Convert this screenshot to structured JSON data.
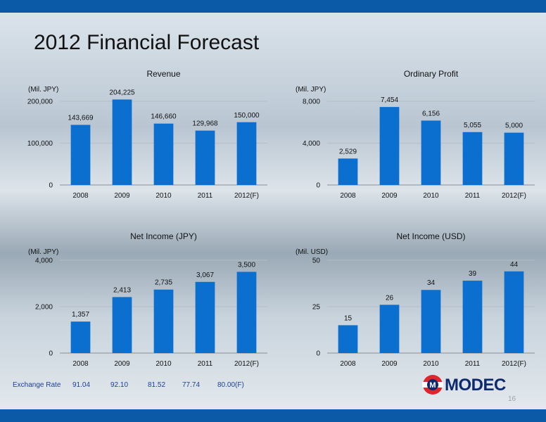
{
  "slide": {
    "title": "2012 Financial Forecast",
    "page_number": "16",
    "colors": {
      "bar": "#0b6fd0",
      "band": "#0b5aa8",
      "text_blue": "#1c3f9a"
    }
  },
  "exchange_rate": {
    "label": "Exchange Rate",
    "values": [
      "91.04",
      "92.10",
      "81.52",
      "77.74",
      "80.00(F)"
    ]
  },
  "logo": {
    "text": "MODEC",
    "emblem_letter": "M"
  },
  "chart_data": [
    {
      "type": "bar",
      "title": "Revenue",
      "unit": "(Mil. JPY)",
      "categories": [
        "2008",
        "2009",
        "2010",
        "2011",
        "2012(F)"
      ],
      "values": [
        143669,
        204225,
        146660,
        129968,
        150000
      ],
      "value_labels": [
        "143,669",
        "204,225",
        "146,660",
        "129,968",
        "150,000"
      ],
      "yticks": [
        0,
        100000,
        200000
      ],
      "ytick_labels": [
        "0",
        "100,000",
        "200,000"
      ],
      "ylim": [
        0,
        200000
      ],
      "grid": true
    },
    {
      "type": "bar",
      "title": "Ordinary Profit",
      "unit": "(Mil. JPY)",
      "categories": [
        "2008",
        "2009",
        "2010",
        "2011",
        "2012(F)"
      ],
      "values": [
        2529,
        7454,
        6156,
        5055,
        5000
      ],
      "value_labels": [
        "2,529",
        "7,454",
        "6,156",
        "5,055",
        "5,000"
      ],
      "yticks": [
        0,
        4000,
        8000
      ],
      "ytick_labels": [
        "0",
        "4,000",
        "8,000"
      ],
      "ylim": [
        0,
        8000
      ],
      "grid": true
    },
    {
      "type": "bar",
      "title": "Net Income (JPY)",
      "unit": "(Mil. JPY)",
      "categories": [
        "2008",
        "2009",
        "2010",
        "2011",
        "2012(F)"
      ],
      "values": [
        1357,
        2413,
        2735,
        3067,
        3500
      ],
      "value_labels": [
        "1,357",
        "2,413",
        "2,735",
        "3,067",
        "3,500"
      ],
      "yticks": [
        0,
        2000,
        4000
      ],
      "ytick_labels": [
        "0",
        "2,000",
        "4,000"
      ],
      "ylim": [
        0,
        4000
      ],
      "grid": true
    },
    {
      "type": "bar",
      "title": "Net Income (USD)",
      "unit": "(Mil. USD)",
      "categories": [
        "2008",
        "2009",
        "2010",
        "2011",
        "2012(F)"
      ],
      "values": [
        15,
        26,
        34,
        39,
        44
      ],
      "value_labels": [
        "15",
        "26",
        "34",
        "39",
        "44"
      ],
      "yticks": [
        0,
        25,
        50
      ],
      "ytick_labels": [
        "0",
        "25",
        "50"
      ],
      "ylim": [
        0,
        50
      ],
      "grid": true
    }
  ]
}
